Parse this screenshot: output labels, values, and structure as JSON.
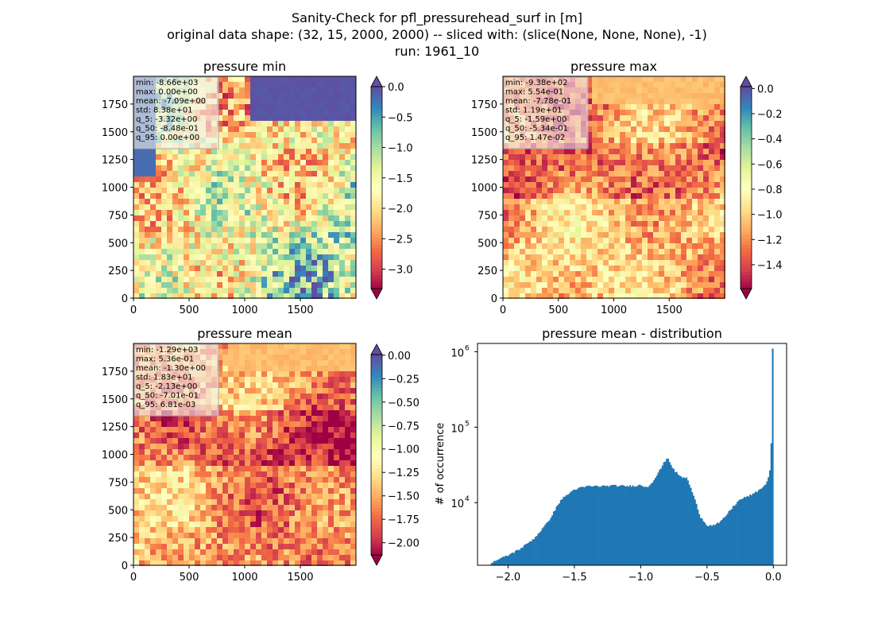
{
  "figure": {
    "title_lines": [
      "Sanity-Check for pfl_pressurehead_surf in [m]",
      "original data shape: (32, 15, 2000, 2000) -- sliced with: (slice(None, None, None), -1)",
      "run: 1961_10"
    ]
  },
  "chart_data": [
    {
      "type": "heatmap",
      "title": "pressure min",
      "xticks": [
        0,
        500,
        1000,
        1500
      ],
      "yticks": [
        0,
        250,
        500,
        750,
        1000,
        1250,
        1500,
        1750
      ],
      "xlim": [
        0,
        2000
      ],
      "ylim": [
        0,
        2000
      ],
      "colormap": "Spectral",
      "vmin": -3.32,
      "vmax": 0.0,
      "colorbar_ticks": [
        "0.0",
        "−0.5",
        "−1.0",
        "−1.5",
        "−2.0",
        "−2.5",
        "−3.0"
      ],
      "colorbar_tick_values": [
        0.0,
        -0.5,
        -1.0,
        -1.5,
        -2.0,
        -2.5,
        -3.0
      ],
      "colorbar_extend": "both",
      "stats": [
        "min: -8.66e+03",
        "max: 0.00e+00",
        "mean: -7.09e+00",
        "std: 8.38e+01",
        "q_5: -3.32e+00",
        "q_50: -8.48e-01",
        "q_95: 0.00e+00"
      ]
    },
    {
      "type": "heatmap",
      "title": "pressure max",
      "xticks": [
        0,
        500,
        1000,
        1500
      ],
      "yticks": [
        0,
        250,
        500,
        750,
        1000,
        1250,
        1500,
        1750
      ],
      "xlim": [
        0,
        2000
      ],
      "ylim": [
        0,
        2000
      ],
      "colormap": "Spectral",
      "vmin": -1.59,
      "vmax": 0.0147,
      "colorbar_ticks": [
        "0.0",
        "−0.2",
        "−0.4",
        "−0.6",
        "−0.8",
        "−1.0",
        "−1.2",
        "−1.4"
      ],
      "colorbar_tick_values": [
        0.0,
        -0.2,
        -0.4,
        -0.6,
        -0.8,
        -1.0,
        -1.2,
        -1.4
      ],
      "colorbar_extend": "both",
      "stats": [
        "min: -9.38e+02",
        "max: 5.54e-01",
        "mean: -7.78e-01",
        "std: 1.19e+01",
        "q_5: -1.59e+00",
        "q_50: -5.34e-01",
        "q_95: 1.47e-02"
      ]
    },
    {
      "type": "heatmap",
      "title": "pressure mean",
      "xticks": [
        0,
        500,
        1000,
        1500
      ],
      "yticks": [
        0,
        250,
        500,
        750,
        1000,
        1250,
        1500,
        1750
      ],
      "xlim": [
        0,
        2000
      ],
      "ylim": [
        0,
        2000
      ],
      "colormap": "Spectral",
      "vmin": -2.13,
      "vmax": 0.00681,
      "colorbar_ticks": [
        "0.00",
        "−0.25",
        "−0.50",
        "−0.75",
        "−1.00",
        "−1.25",
        "−1.50",
        "−1.75",
        "−2.00"
      ],
      "colorbar_tick_values": [
        0.0,
        -0.25,
        -0.5,
        -0.75,
        -1.0,
        -1.25,
        -1.5,
        -1.75,
        -2.0
      ],
      "colorbar_extend": "both",
      "stats": [
        "min: -1.29e+03",
        "max: 5.36e-01",
        "mean: -1.30e+00",
        "std: 1.83e+01",
        "q_5: -2.13e+00",
        "q_50: -7.01e-01",
        "q_95: 6.81e-03"
      ]
    },
    {
      "type": "bar",
      "title": "pressure mean - distribution",
      "ylabel": "# of occurrence",
      "yscale": "log",
      "xlim": [
        -2.23,
        0.1
      ],
      "ylim_exp": [
        3.17,
        6.11
      ],
      "xticks": [
        -2.0,
        -1.5,
        -1.0,
        -0.5,
        0.0
      ],
      "xtick_labels": [
        "−2.0",
        "−1.5",
        "−1.0",
        "−0.5",
        "0.0"
      ],
      "yticks_exp": [
        4,
        5,
        6
      ],
      "ytick_labels": [
        "10",
        "10",
        "10"
      ],
      "ytick_superscripts": [
        "4",
        "5",
        "6"
      ],
      "bar_color": "#1f77b4",
      "bin_range": [
        -2.13,
        0.0
      ],
      "bins": 200,
      "curve": [
        [
          -2.13,
          1600
        ],
        [
          -2.0,
          2000
        ],
        [
          -1.9,
          2500
        ],
        [
          -1.8,
          3400
        ],
        [
          -1.7,
          5500
        ],
        [
          -1.6,
          11000
        ],
        [
          -1.5,
          15000
        ],
        [
          -1.4,
          16500
        ],
        [
          -1.3,
          16500
        ],
        [
          -1.2,
          16800
        ],
        [
          -1.1,
          16500
        ],
        [
          -1.0,
          17000
        ],
        [
          -0.95,
          16000
        ],
        [
          -0.9,
          20000
        ],
        [
          -0.85,
          28000
        ],
        [
          -0.8,
          40000
        ],
        [
          -0.75,
          27000
        ],
        [
          -0.7,
          22000
        ],
        [
          -0.65,
          21000
        ],
        [
          -0.6,
          12000
        ],
        [
          -0.55,
          6500
        ],
        [
          -0.5,
          5000
        ],
        [
          -0.45,
          5000
        ],
        [
          -0.4,
          5500
        ],
        [
          -0.35,
          7000
        ],
        [
          -0.3,
          9000
        ],
        [
          -0.25,
          11000
        ],
        [
          -0.2,
          12000
        ],
        [
          -0.15,
          13000
        ],
        [
          -0.1,
          15000
        ],
        [
          -0.05,
          18000
        ],
        [
          -0.02,
          30000
        ],
        [
          0.0,
          1100000
        ]
      ]
    }
  ]
}
